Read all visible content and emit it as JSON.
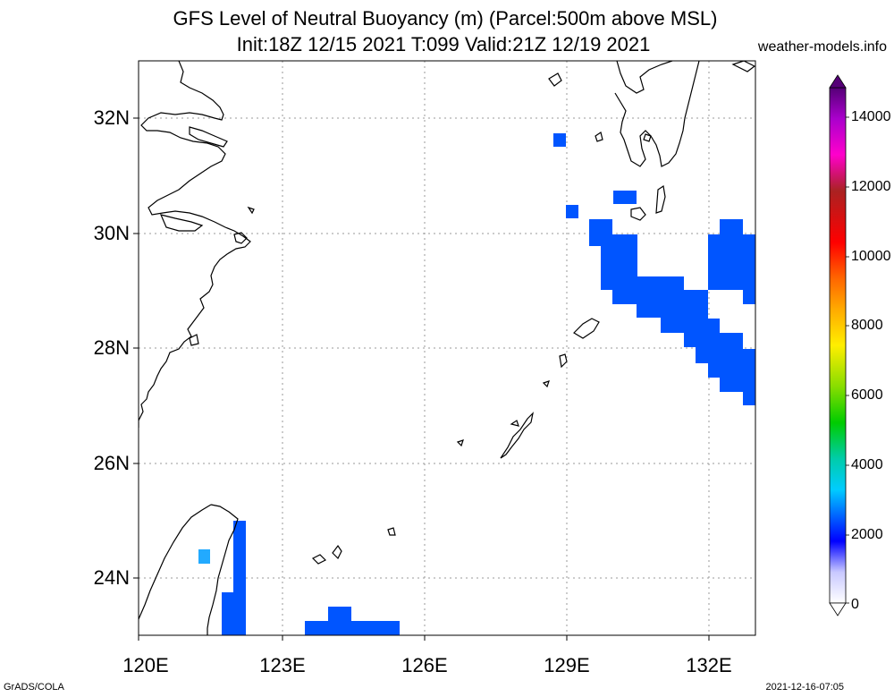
{
  "header": {
    "title_line1": "GFS Level of Neutral Buoyancy (m) (Parcel:500m above MSL)",
    "title_line2": "Init:18Z 12/15 2021 T:099 Valid:21Z 12/19 2021",
    "site": "weather-models.info"
  },
  "map": {
    "lon_range": [
      120,
      133
    ],
    "lat_range": [
      23,
      33
    ],
    "lat_labels": [
      "32N",
      "30N",
      "28N",
      "26N",
      "24N"
    ],
    "lat_values": [
      32,
      30,
      28,
      26,
      24
    ],
    "lon_labels": [
      "120E",
      "123E",
      "126E",
      "129E",
      "132E"
    ],
    "lon_values": [
      120,
      123,
      126,
      129,
      132
    ],
    "gridlines": true,
    "coastline_color": "#000000",
    "field_color": "#0055ff"
  },
  "colorbar": {
    "labels": [
      "14000",
      "12000",
      "10000",
      "8000",
      "6000",
      "4000",
      "2000",
      "0"
    ],
    "values": [
      14000,
      12000,
      10000,
      8000,
      6000,
      4000,
      2000,
      0
    ],
    "range": [
      0,
      15000
    ]
  },
  "footer": {
    "left": "GrADS/COLA",
    "right": "2021-12-16-07:05"
  }
}
